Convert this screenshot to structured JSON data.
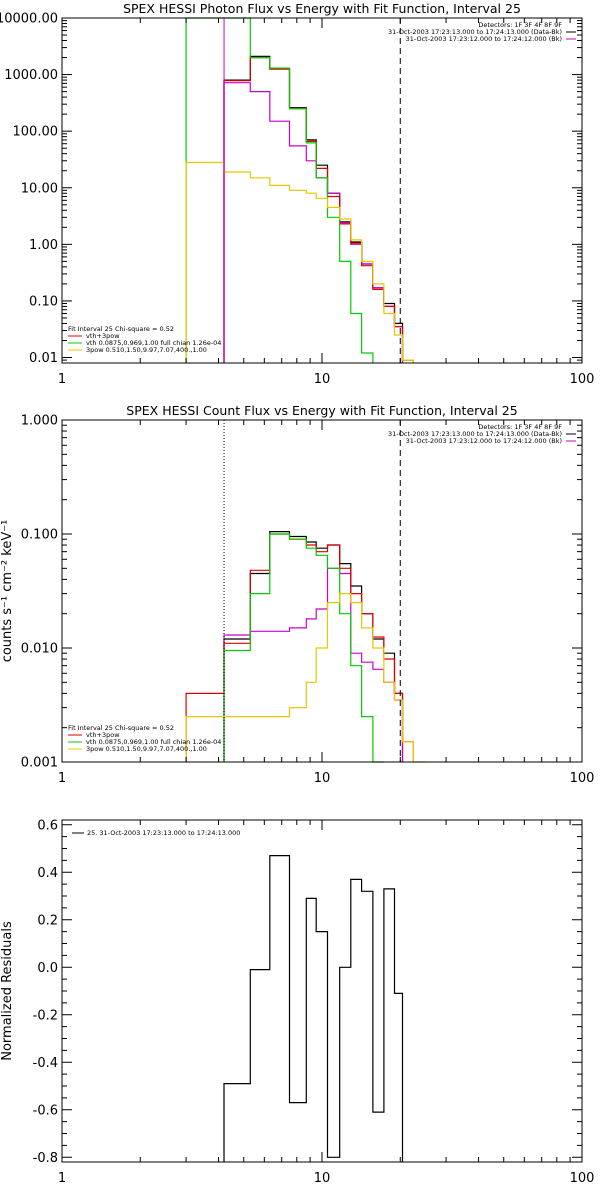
{
  "chart_data": [
    {
      "type": "line",
      "title": "SPEX HESSI Photon Flux vs Energy with Fit Function, Interval 25",
      "xlabel": "",
      "ylabel": "",
      "xscale": "log",
      "yscale": "log",
      "xlim": [
        1,
        100
      ],
      "ylim": [
        0.008,
        10000
      ],
      "xtick_labels": [
        "1",
        "10",
        "100"
      ],
      "xtick_values": [
        1,
        10,
        100
      ],
      "ytick_labels": [
        "0.01",
        "0.10",
        "1.00",
        "10.00",
        "100.00",
        "1000.00",
        "10000.00"
      ],
      "ytick_values": [
        0.01,
        0.1,
        1,
        10,
        100,
        1000,
        10000
      ],
      "grid": false,
      "vlines": [
        {
          "x": 4.2,
          "style": "solid",
          "color": "#cc00cc"
        },
        {
          "x": 20.0,
          "style": "dashed",
          "color": "#000000"
        }
      ],
      "info": [
        "Detectors: 1F 3F 4F 8F 9F",
        "31-Oct-2003 17:23:13.000 to 17:24:13.000 (Data-Bk)",
        "31-Oct-2003 17:23:12.000 to 17:24:12.000 (Bk)"
      ],
      "info_colors": [
        "",
        "#000000",
        "#cc00cc"
      ],
      "legend_lines": [
        {
          "text": "Fit Interval 25   Chi-square = 0.52",
          "color": ""
        },
        {
          "text": "vth+3pow",
          "color": "#e00000"
        },
        {
          "text": "vth 0.0875,0.969,1.00  full chian 1.26e-04",
          "color": "#00cc00"
        },
        {
          "text": "3pow 0.510,1.50,9.97,7.07,400.,1.00",
          "color": "#e6c800"
        }
      ],
      "bin_edges": [
        3,
        4.2,
        5.3,
        6.3,
        7.5,
        8.7,
        9.5,
        10.5,
        11.7,
        12.9,
        14.2,
        15.7,
        17.3,
        19.0,
        20.4,
        22.4,
        24.9
      ],
      "series": [
        {
          "name": "Data-Bk",
          "color": "#000000",
          "values": [
            null,
            800,
            2100,
            1300,
            260,
            70,
            25,
            8,
            2.5,
            1.1,
            0.45,
            0.17,
            0.09,
            0.04,
            null,
            null
          ]
        },
        {
          "name": "Bk",
          "color": "#cc00cc",
          "values": [
            null,
            720,
            500,
            150,
            55,
            30,
            15,
            8,
            2.4,
            1.0,
            0.45,
            0.17,
            0.08,
            0.035,
            null,
            null
          ]
        },
        {
          "name": "vth+3pow",
          "color": "#e00000",
          "values": [
            null,
            780,
            2000,
            1250,
            250,
            66,
            22,
            7,
            2.3,
            1.05,
            0.42,
            0.16,
            0.08,
            0.035,
            0.009,
            null
          ]
        },
        {
          "name": "vth",
          "color": "#00cc00",
          "values": [
            10000,
            10000,
            2000,
            1300,
            250,
            62,
            15,
            3,
            0.5,
            0.06,
            0.012,
            null,
            null,
            null,
            null,
            null
          ]
        },
        {
          "name": "3pow",
          "color": "#e6c800",
          "values": [
            28,
            19,
            15,
            11,
            9,
            8,
            6.5,
            4.5,
            2.8,
            1.2,
            0.5,
            0.2,
            0.06,
            0.025,
            0.009,
            null
          ]
        }
      ]
    },
    {
      "type": "line",
      "title": "SPEX HESSI Count Flux vs Energy with Fit Function, Interval 25",
      "xlabel": "",
      "ylabel": "counts s⁻¹ cm⁻² keV⁻¹",
      "xscale": "log",
      "yscale": "log",
      "xlim": [
        1,
        100
      ],
      "ylim": [
        0.001,
        1.0
      ],
      "xtick_labels": [
        "1",
        "10",
        "100"
      ],
      "xtick_values": [
        1,
        10,
        100
      ],
      "ytick_labels": [
        "0.001",
        "0.010",
        "0.100",
        "1.000"
      ],
      "ytick_values": [
        0.001,
        0.01,
        0.1,
        1.0
      ],
      "grid": false,
      "vlines": [
        {
          "x": 4.2,
          "style": "dotted",
          "color": "#000000"
        },
        {
          "x": 20.0,
          "style": "dashed",
          "color": "#000000"
        }
      ],
      "info": [
        "Detectors: 1F 3F 4F 8F 9F",
        "31-Oct-2003 17:23:13.000 to 17:24:13.000 (Data-Bk)",
        "31-Oct-2003 17:23:12.000 to 17:24:12.000 (Bk)"
      ],
      "info_colors": [
        "",
        "#000000",
        "#cc00cc"
      ],
      "legend_lines": [
        {
          "text": "Fit Interval 25   Chi-square = 0.52",
          "color": ""
        },
        {
          "text": "vth+3pow",
          "color": "#e00000"
        },
        {
          "text": "vth 0.0875,0.969,1.00  full chian 1.26e-04",
          "color": "#00cc00"
        },
        {
          "text": "3pow 0.510,1.50,9.97,7.07,400.,1.00",
          "color": "#e6c800"
        }
      ],
      "bin_edges": [
        3,
        4.2,
        5.3,
        6.3,
        7.5,
        8.7,
        9.5,
        10.5,
        11.7,
        12.9,
        14.2,
        15.7,
        17.3,
        19.0,
        20.4,
        22.4,
        24.9
      ],
      "series": [
        {
          "name": "Data-Bk",
          "color": "#000000",
          "values": [
            null,
            0.012,
            0.045,
            0.105,
            0.095,
            0.085,
            0.075,
            0.08,
            0.055,
            0.035,
            0.02,
            0.012,
            0.009,
            0.004,
            null,
            null
          ]
        },
        {
          "name": "Bk",
          "color": "#cc00cc",
          "values": [
            null,
            0.013,
            0.014,
            0.014,
            0.015,
            0.018,
            0.022,
            0.05,
            0.045,
            0.009,
            0.0075,
            0.0065,
            0.005,
            0.0035,
            null,
            null
          ]
        },
        {
          "name": "vth+3pow",
          "color": "#e00000",
          "values": [
            0.004,
            0.011,
            0.048,
            0.1,
            0.09,
            0.08,
            0.07,
            0.08,
            0.05,
            0.03,
            0.02,
            0.0125,
            0.008,
            0.004,
            0.0015,
            null
          ]
        },
        {
          "name": "vth",
          "color": "#00cc00",
          "values": [
            null,
            0.0095,
            0.03,
            0.1,
            0.09,
            0.075,
            0.065,
            0.05,
            0.02,
            0.007,
            0.0025,
            0.001,
            null,
            null,
            null,
            null
          ]
        },
        {
          "name": "3pow",
          "color": "#e6c800",
          "values": [
            0.0025,
            0.0025,
            0.0025,
            0.0025,
            0.003,
            0.005,
            0.01,
            0.025,
            0.03,
            0.025,
            0.015,
            0.01,
            0.005,
            0.0035,
            0.0015,
            0.001
          ]
        }
      ]
    },
    {
      "type": "line",
      "title": "",
      "xlabel": "",
      "ylabel": "Normalized Residuals",
      "xscale": "log",
      "yscale": "linear",
      "xlim": [
        1,
        100
      ],
      "ylim": [
        -0.82,
        0.62
      ],
      "xtick_labels": [
        "1",
        "10",
        "100"
      ],
      "xtick_values": [
        1,
        10,
        100
      ],
      "ytick_labels": [
        "-0.8",
        "-0.6",
        "-0.4",
        "-0.2",
        "0.0",
        "0.2",
        "0.4",
        "0.6"
      ],
      "ytick_values": [
        -0.8,
        -0.6,
        -0.4,
        -0.2,
        0.0,
        0.2,
        0.4,
        0.6
      ],
      "grid": false,
      "vlines": [],
      "info": [],
      "info_colors": [],
      "legend_lines": [
        {
          "text": "25. 31-Oct-2003 17:23:13.000 to 17:24:13.000",
          "color": "#000000"
        }
      ],
      "bin_edges": [
        4.2,
        5.3,
        6.3,
        7.5,
        8.7,
        9.5,
        10.5,
        11.7,
        12.9,
        14.2,
        15.7,
        17.3,
        19.0,
        20.4
      ],
      "series": [
        {
          "name": "25. 31-Oct-2003 17:23:13.000 to 17:24:13.000",
          "color": "#000000",
          "values": [
            -0.49,
            -0.01,
            0.47,
            -0.57,
            0.29,
            0.15,
            -0.8,
            0.0,
            0.37,
            0.32,
            -0.61,
            0.33,
            -0.11
          ]
        }
      ]
    }
  ]
}
